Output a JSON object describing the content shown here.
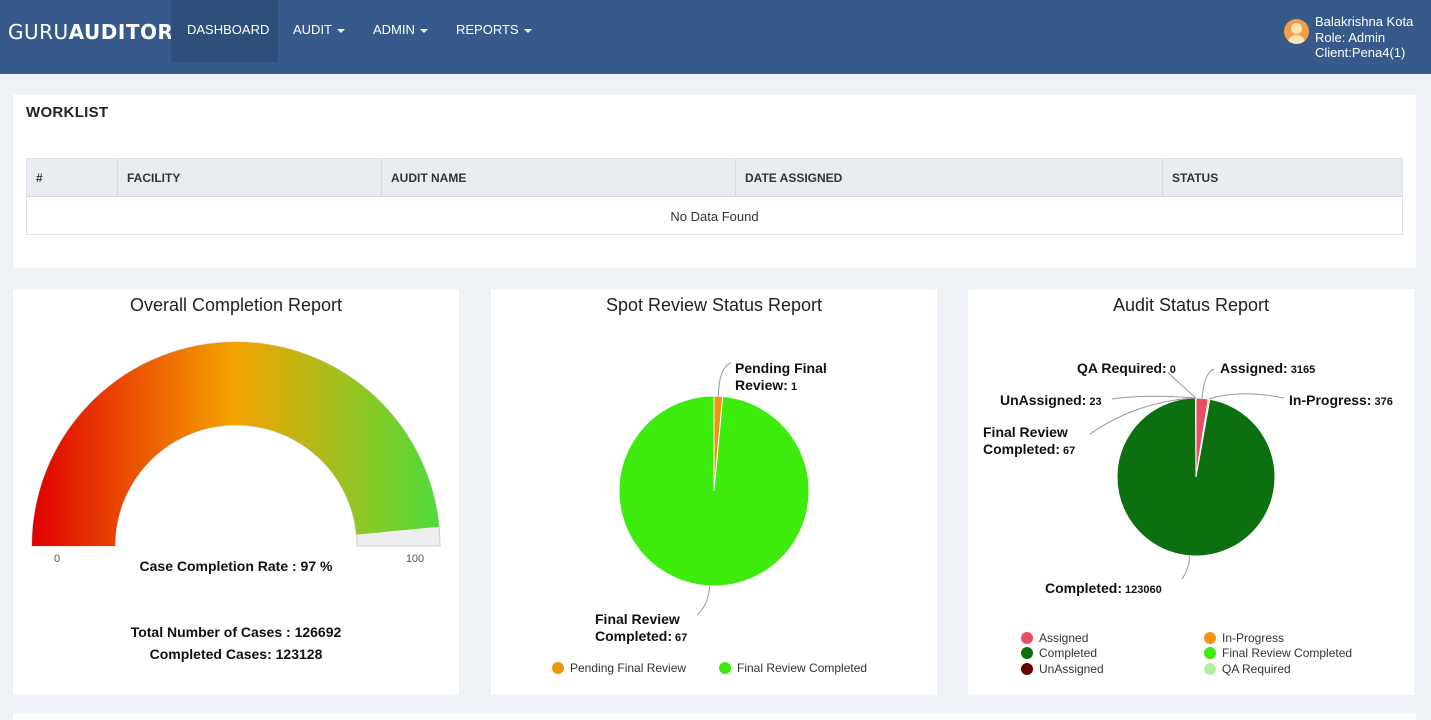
{
  "header": {
    "brand_light": "GURU",
    "brand_bold": "AUDITOR",
    "nav": [
      {
        "label": "DASHBOARD",
        "dropdown": false,
        "active": true
      },
      {
        "label": "AUDIT",
        "dropdown": true,
        "active": false
      },
      {
        "label": "ADMIN",
        "dropdown": true,
        "active": false
      },
      {
        "label": "REPORTS",
        "dropdown": true,
        "active": false
      }
    ],
    "user": {
      "name": "Balakrishna Kota",
      "role": "Role: Admin",
      "client": "Client:Pena4(1)"
    },
    "colors": {
      "navbar": "#375a8a",
      "active_tab": "#2f4f7b"
    }
  },
  "worklist": {
    "title": "WORKLIST",
    "columns": [
      "#",
      "FACILITY",
      "AUDIT NAME",
      "DATE ASSIGNED",
      "STATUS"
    ],
    "rows": [],
    "empty_message": "No Data Found"
  },
  "chart_data": [
    {
      "type": "gauge",
      "title": "Overall Completion Report",
      "min": 0,
      "max": 100,
      "min_label": "0",
      "max_label": "100",
      "value": 97,
      "value_label": "Case Completion Rate : 97 %",
      "summary": [
        "Total Number of Cases : 126692",
        "Completed Cases: 123128"
      ],
      "gradient_colors": [
        "#e00000",
        "#f5a300",
        "#4fdc3a"
      ]
    },
    {
      "type": "pie",
      "title": "Spot Review Status Report",
      "slices": [
        {
          "name": "Pending Final Review",
          "value": 1,
          "color": "#f0960e",
          "label_lines": [
            "Pending Final",
            "Review: 1"
          ]
        },
        {
          "name": "Final Review Completed",
          "value": 67,
          "color": "#3deb0c",
          "label_lines": [
            "Final Review",
            "Completed: 67"
          ]
        }
      ],
      "legend": [
        "Pending Final Review",
        "Final Review Completed"
      ],
      "legend_position": "bottom"
    },
    {
      "type": "pie",
      "title": "Audit Status Report",
      "slices": [
        {
          "name": "Assigned",
          "value": 3165,
          "color": "#e64e65",
          "label_lines": [
            "Assigned: 3165"
          ]
        },
        {
          "name": "In-Progress",
          "value": 376,
          "color": "#f0960e",
          "label_lines": [
            "In-Progress: 376"
          ]
        },
        {
          "name": "Completed",
          "value": 123060,
          "color": "#0d7010",
          "label_lines": [
            "Completed: 123060"
          ]
        },
        {
          "name": "Final Review Completed",
          "value": 67,
          "color": "#3deb0c",
          "label_lines": [
            "Final Review",
            "Completed: 67"
          ]
        },
        {
          "name": "UnAssigned",
          "value": 23,
          "color": "#6b0000",
          "label_lines": [
            "UnAssigned: 23"
          ]
        },
        {
          "name": "QA Required",
          "value": 0,
          "color": "#b4f0a4",
          "label_lines": [
            "QA Required: 0"
          ]
        }
      ],
      "legend": [
        "Assigned",
        "In-Progress",
        "Completed",
        "Final Review Completed",
        "UnAssigned",
        "QA Required"
      ],
      "legend_position": "bottom"
    }
  ]
}
